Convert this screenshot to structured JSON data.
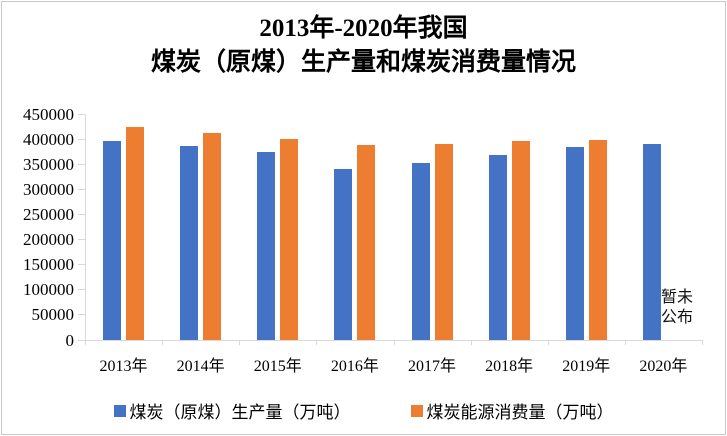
{
  "title": {
    "line1": "2013年-2020年我国",
    "line2": "煤炭（原煤）生产量和煤炭消费量情况"
  },
  "chart_data": {
    "type": "bar",
    "title": "2013年-2020年我国煤炭（原煤）生产量和煤炭消费量情况",
    "categories": [
      "2013年",
      "2014年",
      "2015年",
      "2016年",
      "2017年",
      "2018年",
      "2019年",
      "2020年"
    ],
    "series": [
      {
        "name": "煤炭（原煤）生产量（万吨）",
        "color": "#4472C4",
        "values": [
          397000,
          387000,
          375000,
          341000,
          352000,
          369000,
          385000,
          390000
        ]
      },
      {
        "name": "煤炭能源消费量（万吨）",
        "color": "#ED7D31",
        "values": [
          424000,
          413000,
          400000,
          389000,
          391000,
          397000,
          398000,
          null
        ]
      }
    ],
    "xlabel": "",
    "ylabel": "",
    "ylim": [
      0,
      450000
    ],
    "y_tick_step": 50000,
    "grid": false,
    "legend_position": "bottom",
    "annotation": {
      "text": "暂未公布",
      "category": "2020年",
      "series": "煤炭能源消费量（万吨）"
    }
  },
  "colors": {
    "production_bar": "#4472C4",
    "consumption_bar": "#ED7D31",
    "axis": "#d9d9d9"
  }
}
